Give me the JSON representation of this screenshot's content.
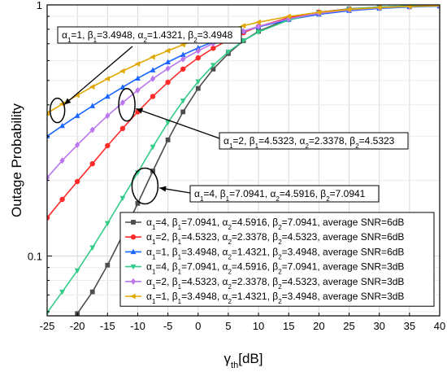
{
  "chart_data": {
    "type": "line",
    "xlabel": "γth[dB]",
    "ylabel": "Outage Probability",
    "xlim": [
      -25,
      40
    ],
    "ylim": [
      0.0578,
      1
    ],
    "y_scale": "log",
    "grid": true,
    "legend_placement": "bottom-right",
    "x_ticks": [
      -25,
      -20,
      -15,
      -10,
      -5,
      0,
      5,
      10,
      15,
      20,
      25,
      30,
      35,
      40
    ],
    "x_tick_labels": [
      "-25",
      "-20",
      "-15",
      "-10",
      "-5",
      "0",
      "5",
      "10",
      "15",
      "20",
      "25",
      "30",
      "35",
      "40"
    ],
    "y_ticks": [
      0.1,
      1
    ],
    "y_tick_labels": [
      "0.1",
      "1"
    ],
    "series": [
      {
        "name": "α1=4, β1=7.0941, α2=4.5916, β2=7.0941, average SNR=6dB",
        "color": "#4d4d4d",
        "marker": "square",
        "x": [
          -20,
          -17.5,
          -15,
          -12.5,
          -10,
          -7.5,
          -5,
          -2.5,
          0,
          2.5,
          5,
          7.5,
          10,
          15,
          20,
          25,
          30,
          35,
          40
        ],
        "y": [
          0.059,
          0.072,
          0.092,
          0.121,
          0.162,
          0.218,
          0.29,
          0.375,
          0.465,
          0.555,
          0.64,
          0.72,
          0.785,
          0.88,
          0.935,
          0.965,
          0.98,
          0.99,
          0.995
        ]
      },
      {
        "name": "α1=2, β1=4.5323, α2=2.3378, β2=4.5323, average SNR=6dB",
        "color": "#ff2a2a",
        "marker": "circle",
        "x": [
          -25,
          -22.5,
          -20,
          -17.5,
          -15,
          -12.5,
          -10,
          -7.5,
          -5,
          -2.5,
          0,
          2.5,
          5,
          7.5,
          10,
          15,
          20,
          25,
          30,
          35,
          40
        ],
        "y": [
          0.142,
          0.168,
          0.198,
          0.233,
          0.275,
          0.322,
          0.375,
          0.432,
          0.492,
          0.555,
          0.615,
          0.672,
          0.725,
          0.775,
          0.82,
          0.89,
          0.935,
          0.962,
          0.978,
          0.988,
          0.994
        ]
      },
      {
        "name": "α1=1, β1=3.4948, α2=1.4321, β2=3.4948, average SNR=6dB",
        "color": "#1a66ff",
        "marker": "triangle-up",
        "x": [
          -25,
          -22.5,
          -20,
          -17.5,
          -15,
          -12.5,
          -10,
          -7.5,
          -5,
          -2.5,
          0,
          2.5,
          5,
          7.5,
          10,
          15,
          20,
          25,
          30,
          35,
          40
        ],
        "y": [
          0.3,
          0.33,
          0.362,
          0.396,
          0.432,
          0.47,
          0.51,
          0.55,
          0.592,
          0.633,
          0.674,
          0.713,
          0.751,
          0.786,
          0.818,
          0.873,
          0.917,
          0.948,
          0.968,
          0.981,
          0.988
        ]
      },
      {
        "name": "α1=4, β1=7.0941, α2=4.5916, β2=7.0941, average SNR=3dB",
        "color": "#33cc88",
        "marker": "triangle-down",
        "x": [
          -25,
          -22.5,
          -20,
          -17.5,
          -15,
          -12.5,
          -10,
          -7.5,
          -5,
          -2.5,
          0,
          2.5,
          5,
          7.5,
          10,
          15,
          20,
          25,
          30,
          35,
          40
        ],
        "y": [
          0.0595,
          0.072,
          0.0875,
          0.108,
          0.135,
          0.17,
          0.215,
          0.272,
          0.34,
          0.415,
          0.495,
          0.575,
          0.65,
          0.72,
          0.78,
          0.87,
          0.93,
          0.962,
          0.98,
          0.99,
          0.995
        ]
      },
      {
        "name": "α1=2, β1=4.5323, α2=2.3378, β2=4.5323, average SNR=3dB",
        "color": "#bb77ee",
        "marker": "diamond",
        "x": [
          -25,
          -22.5,
          -20,
          -17.5,
          -15,
          -12.5,
          -10,
          -7.5,
          -5,
          -2.5,
          0,
          2.5,
          5,
          7.5,
          10,
          15,
          20,
          25,
          30,
          35,
          40
        ],
        "y": [
          0.205,
          0.24,
          0.277,
          0.318,
          0.362,
          0.408,
          0.457,
          0.508,
          0.558,
          0.608,
          0.656,
          0.702,
          0.745,
          0.785,
          0.821,
          0.88,
          0.925,
          0.955,
          0.974,
          0.986,
          0.993
        ]
      },
      {
        "name": "α1=1, β1=3.4948, α2=1.4321, β2=3.4948, average SNR=3dB",
        "color": "#e0a800",
        "marker": "triangle-left",
        "x": [
          -25,
          -22.5,
          -20,
          -17.5,
          -15,
          -12.5,
          -10,
          -7.5,
          -5,
          -2.5,
          0,
          2.5,
          5,
          7.5,
          10,
          15,
          20,
          25,
          30,
          35,
          40
        ],
        "y": [
          0.37,
          0.403,
          0.437,
          0.472,
          0.508,
          0.545,
          0.582,
          0.62,
          0.657,
          0.694,
          0.73,
          0.764,
          0.796,
          0.826,
          0.853,
          0.899,
          0.934,
          0.959,
          0.976,
          0.986,
          0.992
        ]
      }
    ],
    "annotations": [
      {
        "text": "α1=1, β1=3.4948, α2=1.4321, β2=3.4948",
        "target_x": -23.3,
        "target_y": 0.38
      },
      {
        "text": "α1=2, β1=4.5323, α2=2.3378, β2=4.5323",
        "target_x": -11.8,
        "target_y": 0.4
      },
      {
        "text": "α1=4, β1=7.0941, α2=4.5916, β2=7.0941",
        "target_x": -8.8,
        "target_y": 0.19
      }
    ]
  }
}
